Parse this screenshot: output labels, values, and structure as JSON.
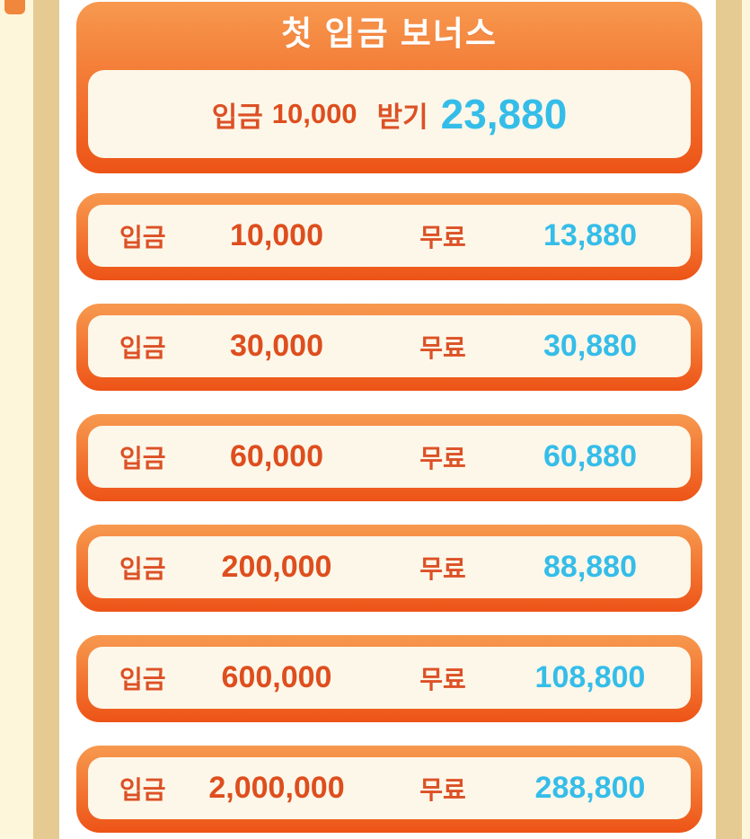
{
  "header": {
    "title": "첫 입금 보너스",
    "claim": {
      "deposit_label": "입금",
      "amount": "10,000",
      "action_label": "받기",
      "bonus": "23,880"
    }
  },
  "rows": [
    {
      "deposit_label": "입금",
      "amount": "10,000",
      "free_label": "무료",
      "bonus": "13,880"
    },
    {
      "deposit_label": "입금",
      "amount": "30,000",
      "free_label": "무료",
      "bonus": "30,880"
    },
    {
      "deposit_label": "입금",
      "amount": "60,000",
      "free_label": "무료",
      "bonus": "60,880"
    },
    {
      "deposit_label": "입금",
      "amount": "200,000",
      "free_label": "무료",
      "bonus": "88,880"
    },
    {
      "deposit_label": "입금",
      "amount": "600,000",
      "free_label": "무료",
      "bonus": "108,800"
    },
    {
      "deposit_label": "입금",
      "amount": "2,000,000",
      "free_label": "무료",
      "bonus": "288,800"
    }
  ],
  "colors": {
    "card_gradient_top": "#F7994F",
    "card_gradient_bottom": "#ED5317",
    "panel_background": "#FDF7E9",
    "label_orange": "#DC5126",
    "amount_orange": "#DE4E1E",
    "bonus_cyan": "#35BDE9",
    "title_text": "#FFFDFB",
    "edge_cream": "#FEF6DB",
    "edge_tan": "#E5CB92"
  }
}
